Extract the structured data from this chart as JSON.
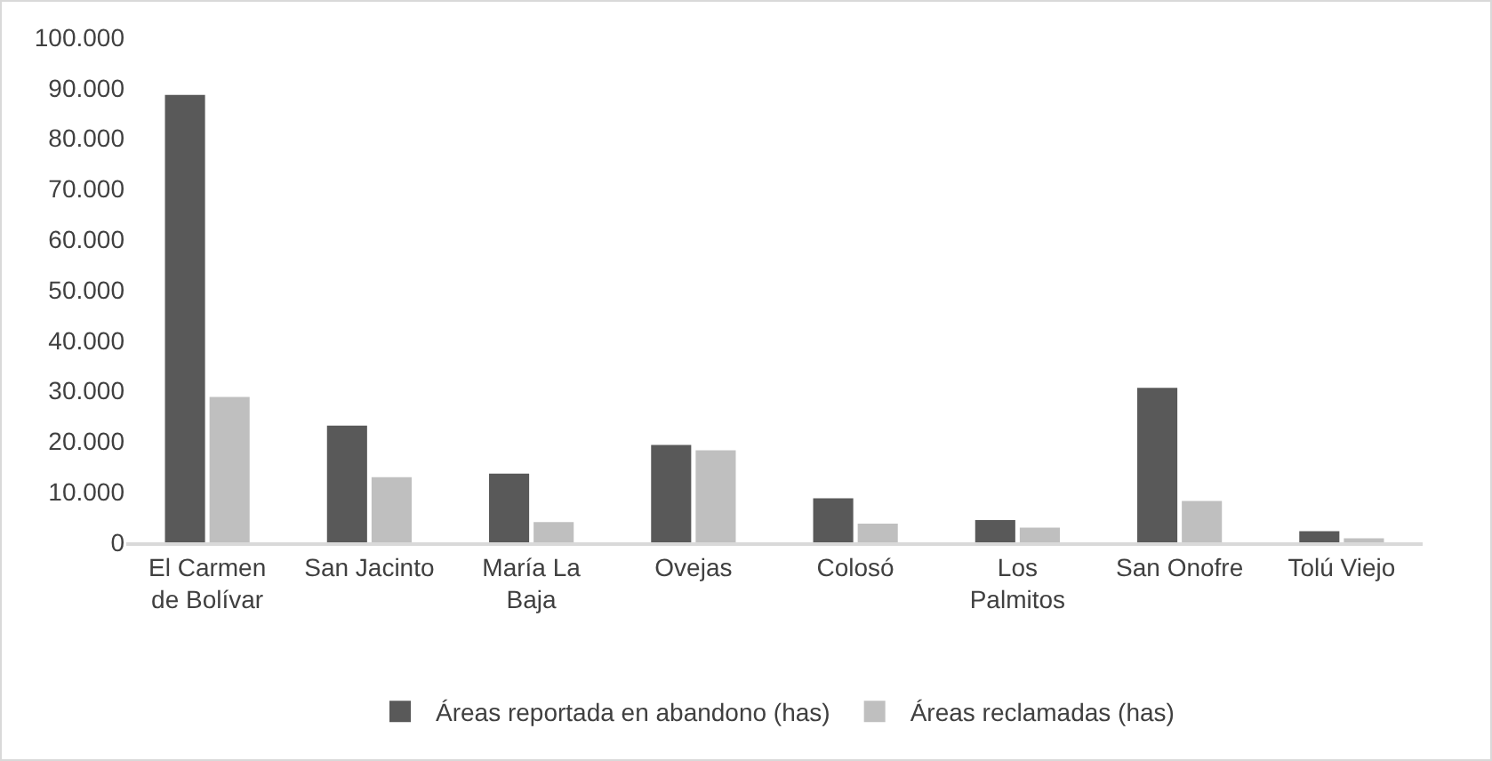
{
  "chart_data": {
    "type": "bar",
    "categories": [
      "El Carmen\nde Bolívar",
      "San Jacinto",
      "María La\nBaja",
      "Ovejas",
      "Colosó",
      "Los\nPalmitos",
      "San Onofre",
      "Tolú Viejo"
    ],
    "series": [
      {
        "name": "Áreas reportada en abandono (has)",
        "color": "#595959",
        "values": [
          88600,
          23100,
          13600,
          19300,
          8700,
          4400,
          30600,
          2200
        ]
      },
      {
        "name": "Áreas reclamadas (has)",
        "color": "#bfbfbf",
        "values": [
          28800,
          12900,
          4000,
          18200,
          3700,
          2900,
          8200,
          800
        ]
      }
    ],
    "ylim": [
      0,
      100000
    ],
    "yticks": [
      0,
      {
        "value": 10000,
        "label": "10.000"
      },
      {
        "value": 20000,
        "label": "20.000"
      },
      {
        "value": 30000,
        "label": "30.000"
      },
      {
        "value": 40000,
        "label": "40.000"
      },
      {
        "value": 50000,
        "label": "50.000"
      },
      {
        "value": 60000,
        "label": "60.000"
      },
      {
        "value": 70000,
        "label": "70.000"
      },
      {
        "value": 80000,
        "label": "80.000"
      },
      {
        "value": 90000,
        "label": "90.000"
      },
      {
        "value": 100000,
        "label": "100.000"
      }
    ],
    "grid": false,
    "legend": "bottom"
  }
}
